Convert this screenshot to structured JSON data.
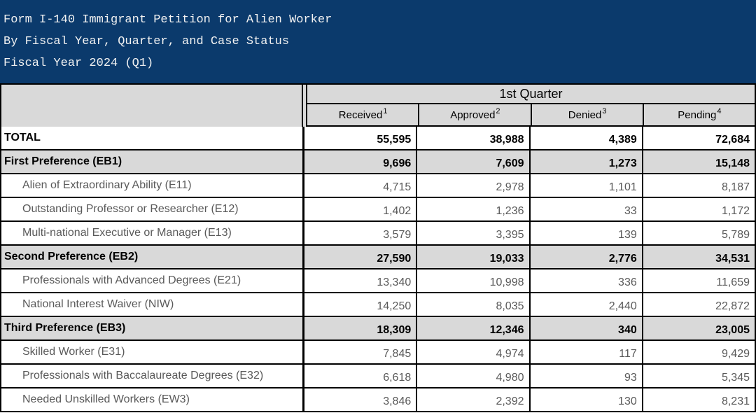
{
  "title": {
    "line1": "Form I-140 Immigrant Petition for Alien Worker",
    "line2": "By Fiscal Year, Quarter, and Case Status",
    "line3": "Fiscal Year 2024 (Q1)"
  },
  "table": {
    "quarter_header": "1st Quarter",
    "columns": [
      {
        "label": "Received",
        "superscript": "1"
      },
      {
        "label": "Approved",
        "superscript": "2"
      },
      {
        "label": "Denied",
        "superscript": "3"
      },
      {
        "label": "Pending",
        "superscript": "4"
      }
    ],
    "rows": [
      {
        "label": "TOTAL",
        "type": "total",
        "values": [
          "55,595",
          "38,988",
          "4,389",
          "72,684"
        ]
      },
      {
        "label": "First Preference (EB1)",
        "type": "category",
        "values": [
          "9,696",
          "7,609",
          "1,273",
          "15,148"
        ]
      },
      {
        "label": "Alien of Extraordinary Ability (E11)",
        "type": "sub",
        "values": [
          "4,715",
          "2,978",
          "1,101",
          "8,187"
        ]
      },
      {
        "label": "Outstanding Professor or Researcher (E12)",
        "type": "sub",
        "values": [
          "1,402",
          "1,236",
          "33",
          "1,172"
        ]
      },
      {
        "label": "Multi-national Executive or Manager (E13)",
        "type": "sub",
        "values": [
          "3,579",
          "3,395",
          "139",
          "5,789"
        ]
      },
      {
        "label": "Second Preference (EB2)",
        "type": "category",
        "values": [
          "27,590",
          "19,033",
          "2,776",
          "34,531"
        ]
      },
      {
        "label": "Professionals with Advanced Degrees (E21)",
        "type": "sub",
        "values": [
          "13,340",
          "10,998",
          "336",
          "11,659"
        ]
      },
      {
        "label": "National Interest Waiver (NIW)",
        "type": "sub",
        "values": [
          "14,250",
          "8,035",
          "2,440",
          "22,872"
        ]
      },
      {
        "label": "Third Preference (EB3)",
        "type": "category",
        "values": [
          "18,309",
          "12,346",
          "340",
          "23,005"
        ]
      },
      {
        "label": "Skilled Worker (E31)",
        "type": "sub",
        "values": [
          "7,845",
          "4,974",
          "117",
          "9,429"
        ]
      },
      {
        "label": "Professionals with Baccalaureate Degrees (E32)",
        "type": "sub",
        "values": [
          "6,618",
          "4,980",
          "93",
          "5,345"
        ]
      },
      {
        "label": "Needed Unskilled Workers (EW3)",
        "type": "sub",
        "values": [
          "3,846",
          "2,392",
          "130",
          "8,231"
        ]
      }
    ]
  },
  "colors": {
    "title_band": "#0b3a6c",
    "title_text": "#f2f2f2",
    "header_fill": "#d9d9d9",
    "sub_row_text": "#595959",
    "bold_text": "#000000",
    "border": "#000000"
  }
}
